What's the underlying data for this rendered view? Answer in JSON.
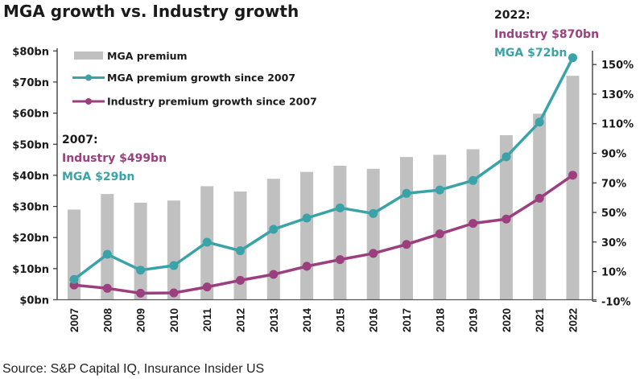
{
  "chart_data": {
    "type": "bar+line",
    "title": "MGA growth vs. Industry growth",
    "source": "Source: S&P Capital IQ, Insurance Insider US",
    "categories": [
      "2007",
      "2008",
      "2009",
      "2010",
      "2011",
      "2012",
      "2013",
      "2014",
      "2015",
      "2016",
      "2017",
      "2018",
      "2019",
      "2020",
      "2021",
      "2022"
    ],
    "left_axis": {
      "ticks": [
        0,
        10,
        20,
        30,
        40,
        50,
        60,
        70,
        80
      ],
      "tick_labels": [
        "$0bn",
        "$10bn",
        "$20bn",
        "$30bn",
        "$40bn",
        "$50bn",
        "$60bn",
        "$70bn",
        "$80bn"
      ],
      "ylim": [
        0,
        80
      ]
    },
    "right_axis": {
      "ticks": [
        -10,
        10,
        30,
        50,
        70,
        90,
        110,
        130,
        150
      ],
      "tick_labels": [
        "-10%",
        "10%",
        "30%",
        "50%",
        "70%",
        "90%",
        "110%",
        "130%",
        "150%"
      ],
      "ylim": [
        -10,
        150
      ]
    },
    "series": [
      {
        "name": "MGA premium",
        "type": "bar",
        "axis": "left",
        "unit": "$bn",
        "color": "#c0c0c0",
        "values": [
          29.0,
          34.0,
          31.2,
          31.9,
          36.5,
          34.8,
          38.9,
          41.1,
          43.1,
          42.1,
          45.9,
          46.6,
          48.4,
          52.9,
          59.8,
          72.0
        ]
      },
      {
        "name": "MGA premium growth since 2007",
        "type": "line",
        "axis": "right",
        "unit": "%",
        "color": "#3aa3a8",
        "values": [
          4.7,
          21.7,
          11.0,
          14.1,
          29.9,
          24.1,
          38.6,
          46.2,
          53.1,
          49.3,
          62.9,
          65.2,
          71.6,
          87.6,
          111.1,
          154.6
        ]
      },
      {
        "name": "Industry premium growth since 2007",
        "type": "line",
        "axis": "right",
        "unit": "%",
        "color": "#9b3f7f",
        "values": [
          0.9,
          -1.3,
          -4.6,
          -4.4,
          -0.4,
          4.1,
          8.1,
          13.6,
          18.1,
          22.3,
          28.4,
          35.5,
          42.6,
          45.5,
          59.6,
          75.2
        ]
      }
    ],
    "legend": {
      "placement": "top-left",
      "entries": [
        "MGA premium",
        "MGA premium growth since 2007",
        "Industry premium growth since 2007"
      ]
    },
    "annotations": [
      {
        "id": "a2007",
        "lines": [
          {
            "text": "2007:",
            "color": "#1a1a1a"
          },
          {
            "text": "Industry $499bn",
            "color": "#9b3f7f"
          },
          {
            "text": "MGA $29bn",
            "color": "#3aa3a8"
          }
        ]
      },
      {
        "id": "a2022",
        "lines": [
          {
            "text": "2022:",
            "color": "#1a1a1a"
          },
          {
            "text": "Industry $870bn",
            "color": "#9b3f7f"
          },
          {
            "text": "MGA $72bn",
            "color": "#3aa3a8"
          }
        ]
      }
    ],
    "grid": false
  }
}
